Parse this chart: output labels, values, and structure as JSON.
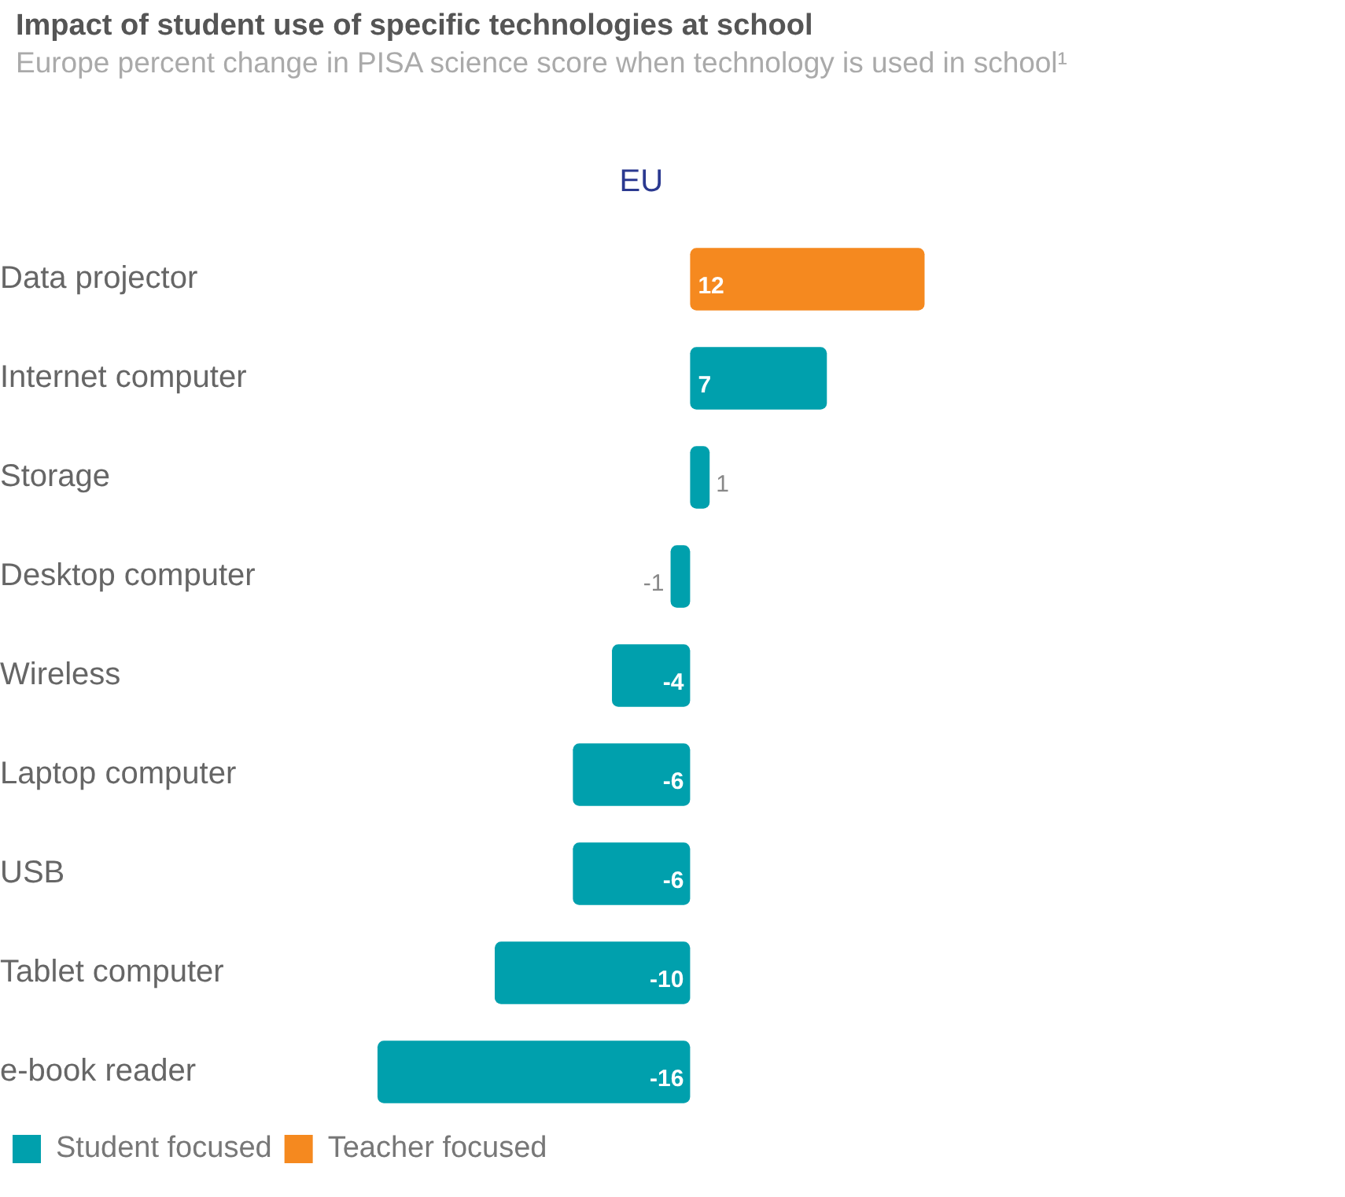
{
  "chart_data": {
    "type": "bar",
    "orientation": "horizontal",
    "stacked": true,
    "title": "Impact of student use of specific technologies at school",
    "subtitle": "Europe percent change in PISA science score when technology is used in school¹",
    "xlabel": "EU",
    "tick_labels": "y",
    "grid": false,
    "legend": "bottom left",
    "data_labels": true,
    "categories": [
      "Data projector",
      "Internet computer",
      "Storage",
      "Desktop computer",
      "Wireless",
      "Laptop computer",
      "USB",
      "Tablet computer",
      "e-book reader"
    ],
    "series": [
      {
        "name": "Student focused",
        "color": "#00a0ad",
        "values": [
          null,
          7,
          1,
          -1,
          -4,
          -6,
          -6,
          -10,
          -16
        ]
      },
      {
        "name": "Teacher focused",
        "color": "#f5891f",
        "values": [
          12,
          null,
          null,
          null,
          null,
          null,
          null,
          null,
          null
        ]
      }
    ]
  }
}
